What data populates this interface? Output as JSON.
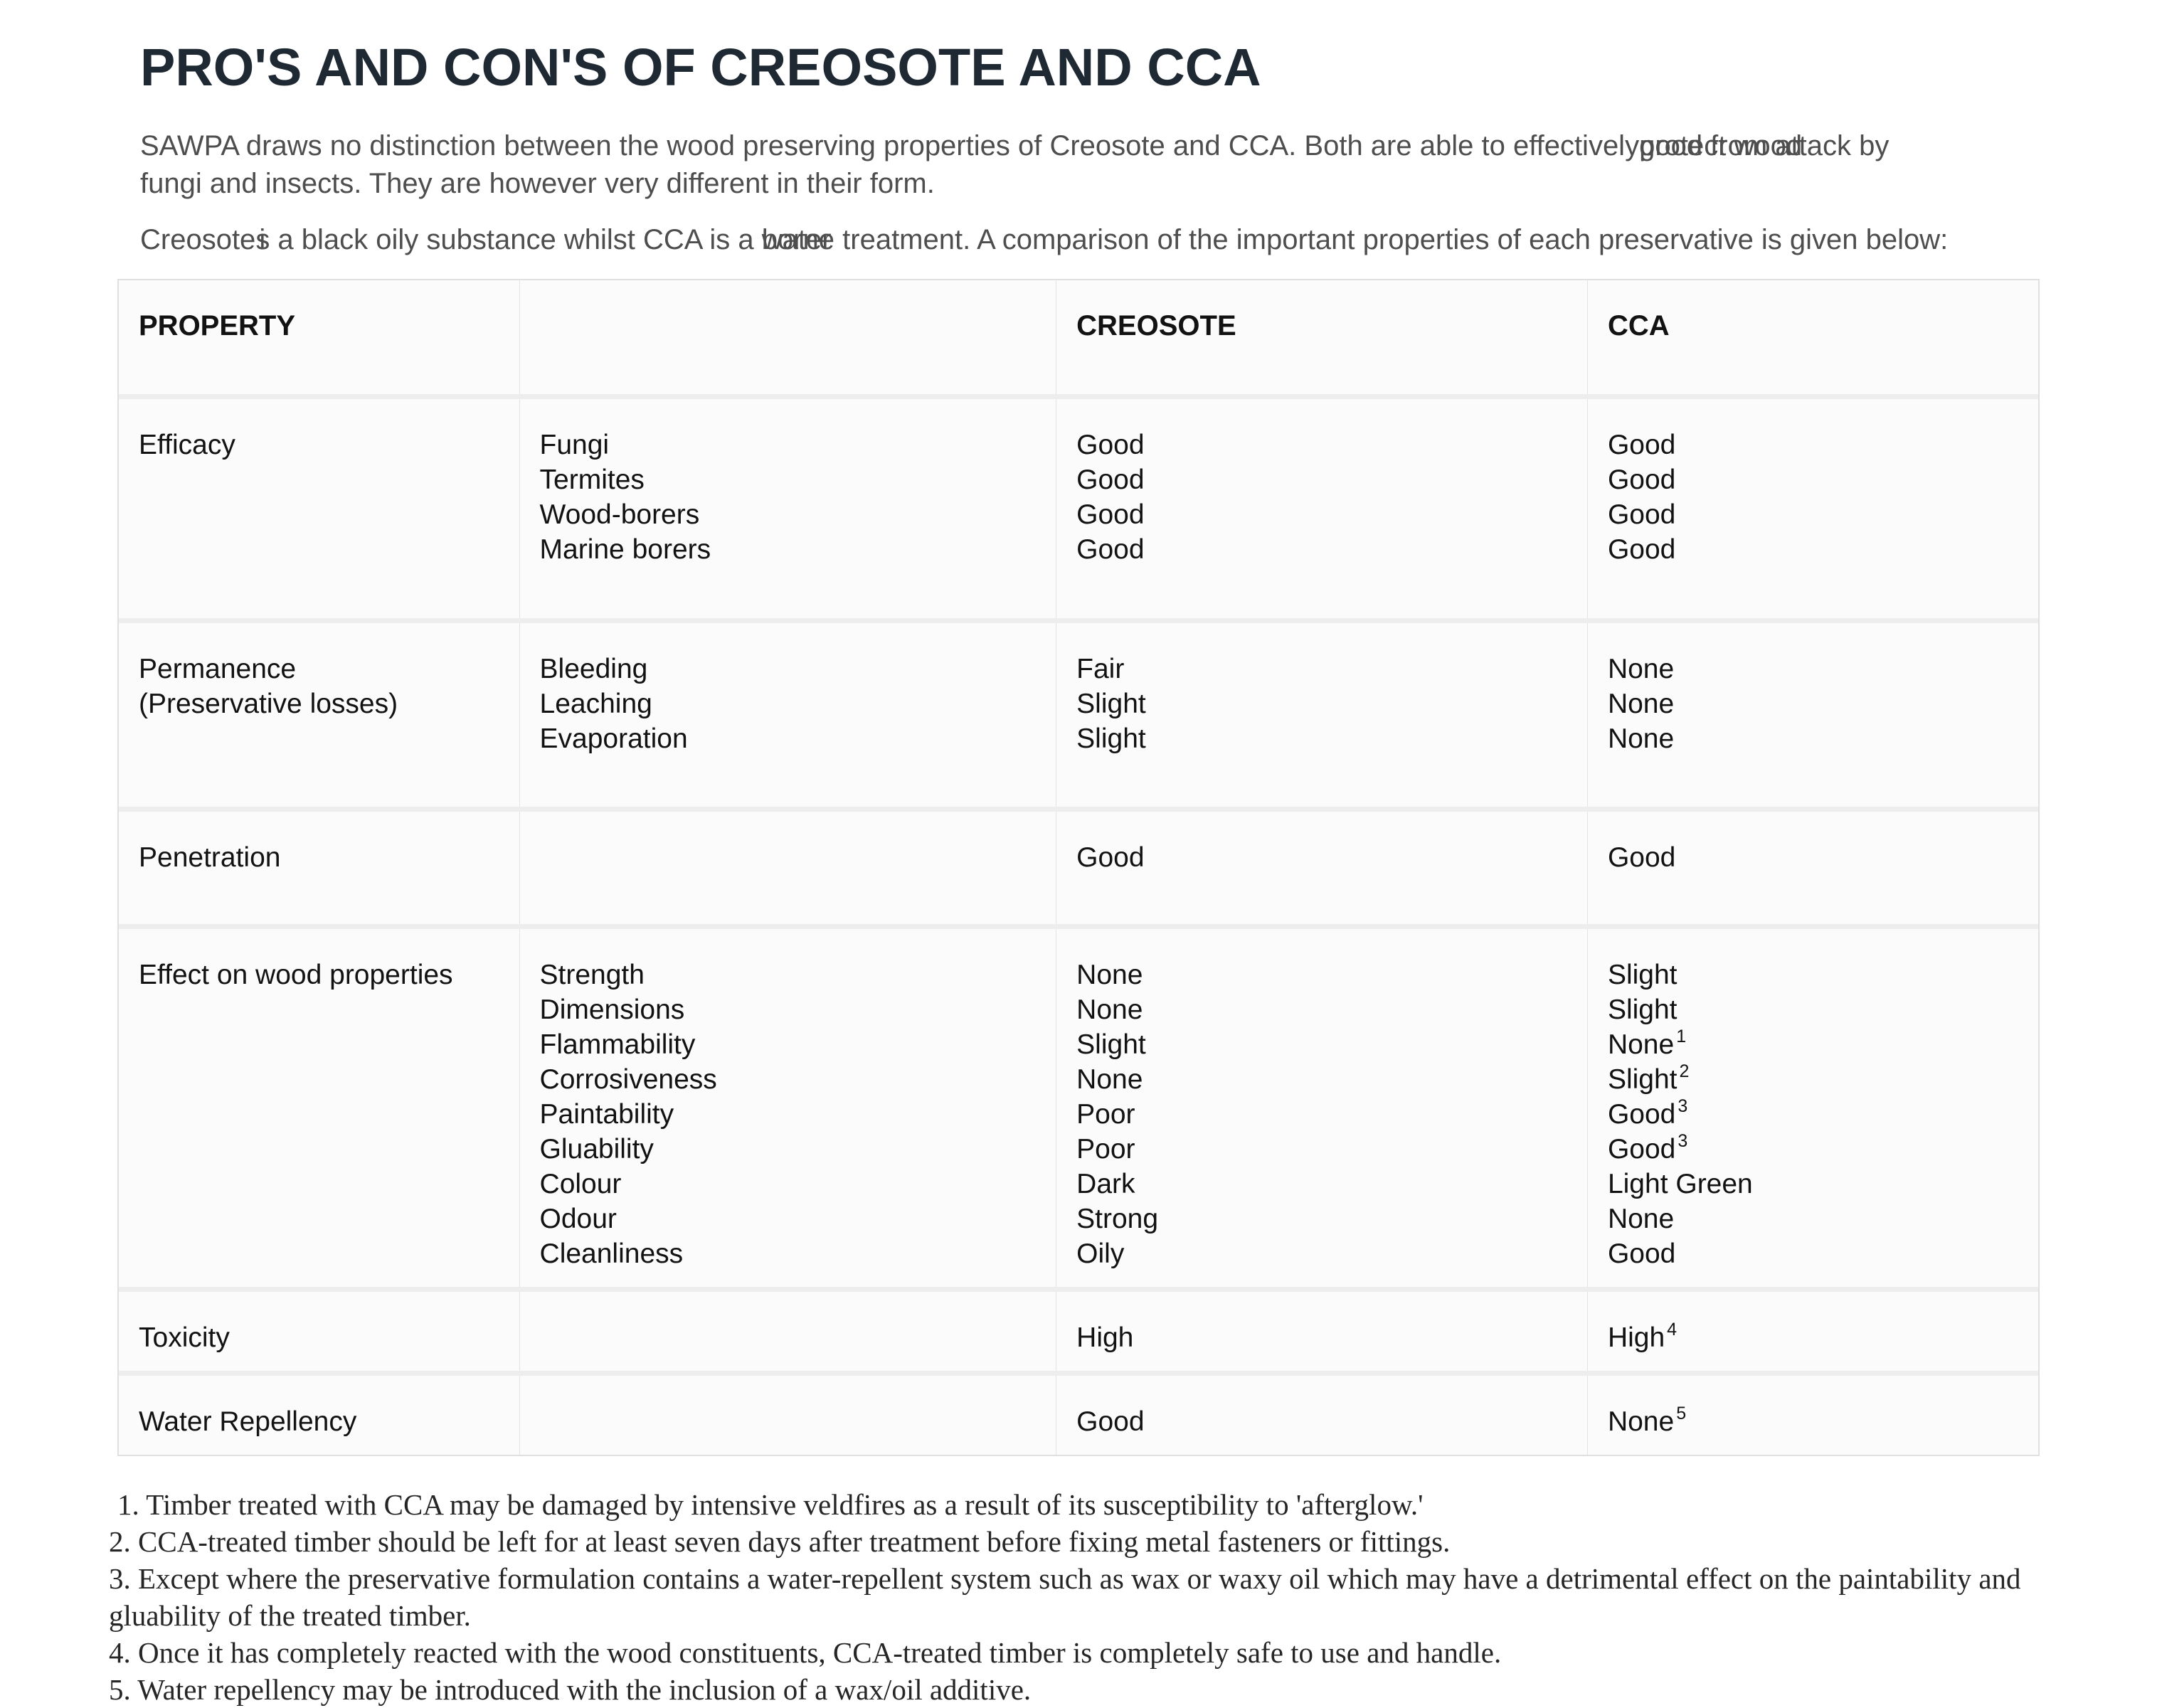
{
  "page": {
    "title": "PRO'S AND CON'S OF CREOSOTE AND CCA"
  },
  "intro": {
    "p1": {
      "before": "SAWPA draws no distinction between the wood preserving properties of Creosote and CCA. Both are able to effectively",
      "overlap_base": "good from",
      "overlap_top": "protect wood",
      "after": " attack by",
      "line2": "fungi and insects. They are however very different in their form."
    },
    "p2": {
      "start": "Creosote",
      "overlap1_base": "s",
      "overlap1_top": "i",
      "mid": " a black oily substance whilst CCA is a ",
      "overlap2_base": "borne",
      "overlap2_top": "water",
      "end": " treatment. A comparison of the important properties of each preservative is given below:"
    }
  },
  "table": {
    "headers": [
      "PROPERTY",
      "",
      "CREOSOTE",
      "CCA"
    ],
    "rows": [
      {
        "property": "Efficacy",
        "sub": "Fungi\nTermites\nWood-borers\nMarine borers",
        "creosote": "Good\nGood\nGood\nGood",
        "cca": [
          {
            "text": "Good",
            "sup": ""
          },
          {
            "text": "Good",
            "sup": ""
          },
          {
            "text": "Good",
            "sup": ""
          },
          {
            "text": "Good",
            "sup": ""
          }
        ]
      },
      {
        "property": "Permanence\n(Preservative losses)",
        "sub": "Bleeding\nLeaching\nEvaporation",
        "creosote": "Fair\nSlight\nSlight",
        "cca": [
          {
            "text": "None",
            "sup": ""
          },
          {
            "text": "None",
            "sup": ""
          },
          {
            "text": "None",
            "sup": ""
          }
        ]
      },
      {
        "property": "Penetration",
        "sub": "",
        "creosote": "Good",
        "cca": [
          {
            "text": "Good",
            "sup": ""
          }
        ]
      },
      {
        "property": "Effect on wood properties",
        "sub": "Strength\nDimensions\nFlammability\nCorrosiveness\nPaintability\nGluability\nColour\nOdour\nCleanliness",
        "creosote": "None\nNone\nSlight\nNone\nPoor\nPoor\nDark\nStrong\nOily",
        "cca": [
          {
            "text": "Slight",
            "sup": ""
          },
          {
            "text": "Slight",
            "sup": ""
          },
          {
            "text": "None",
            "sup": "1"
          },
          {
            "text": "Slight",
            "sup": "2"
          },
          {
            "text": "Good",
            "sup": "3"
          },
          {
            "text": "Good",
            "sup": "3"
          },
          {
            "text": "Light Green",
            "sup": ""
          },
          {
            "text": "None",
            "sup": ""
          },
          {
            "text": "Good",
            "sup": ""
          }
        ]
      },
      {
        "property": "Toxicity",
        "sub": "",
        "creosote": "High",
        "cca": [
          {
            "text": "High",
            "sup": "4"
          }
        ]
      },
      {
        "property": "Water Repellency",
        "sub": "",
        "creosote": "Good",
        "cca": [
          {
            "text": "None",
            "sup": "5"
          }
        ]
      }
    ]
  },
  "footnotes": [
    "1. Timber treated with CCA may be damaged by intensive veldfires as a result of its susceptibility to 'afterglow.'",
    "2. CCA-treated timber should be left for at least seven days after treatment before fixing metal fasteners or fittings.",
    "3. Except where the preservative formulation contains a water-repellent system such as wax or waxy oil which may have a detrimental effect on the paintability and gluability of the treated timber.",
    "4. Once it has completely reacted with the wood constituents, CCA-treated timber is completely safe to use and handle.",
    "5. Water repellency may be introduced with the inclusion of a wax/oil additive."
  ],
  "colors": {
    "title": "#1e2933",
    "body_text": "#4e4e4e",
    "table_text": "#121212",
    "cell_background": "#fbfbfb",
    "row_gap": "#ededed",
    "border": "#e0e0e0",
    "footnote_text": "#262626"
  }
}
